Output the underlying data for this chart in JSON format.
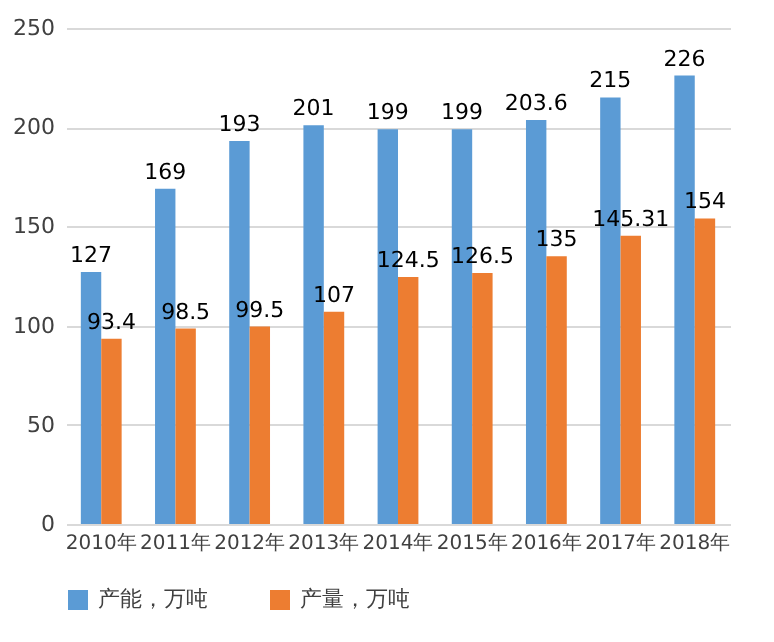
{
  "chart_data": {
    "type": "bar",
    "categories": [
      "2010年",
      "2011年",
      "2012年",
      "2013年",
      "2014年",
      "2015年",
      "2016年",
      "2017年",
      "2018年"
    ],
    "series": [
      {
        "name": "产能，万吨",
        "color": "#5b9bd5",
        "values": [
          127,
          169,
          193,
          201,
          199,
          199,
          203.6,
          215,
          226
        ]
      },
      {
        "name": "产量，万吨",
        "color": "#ed7d31",
        "values": [
          93.4,
          98.5,
          99.5,
          107,
          124.5,
          126.5,
          135,
          145.31,
          154
        ]
      }
    ],
    "ylim": [
      0,
      250
    ],
    "yticks": [
      0,
      50,
      100,
      150,
      200,
      250
    ],
    "grid": "y",
    "legend": "bottom",
    "data_labels": true
  }
}
